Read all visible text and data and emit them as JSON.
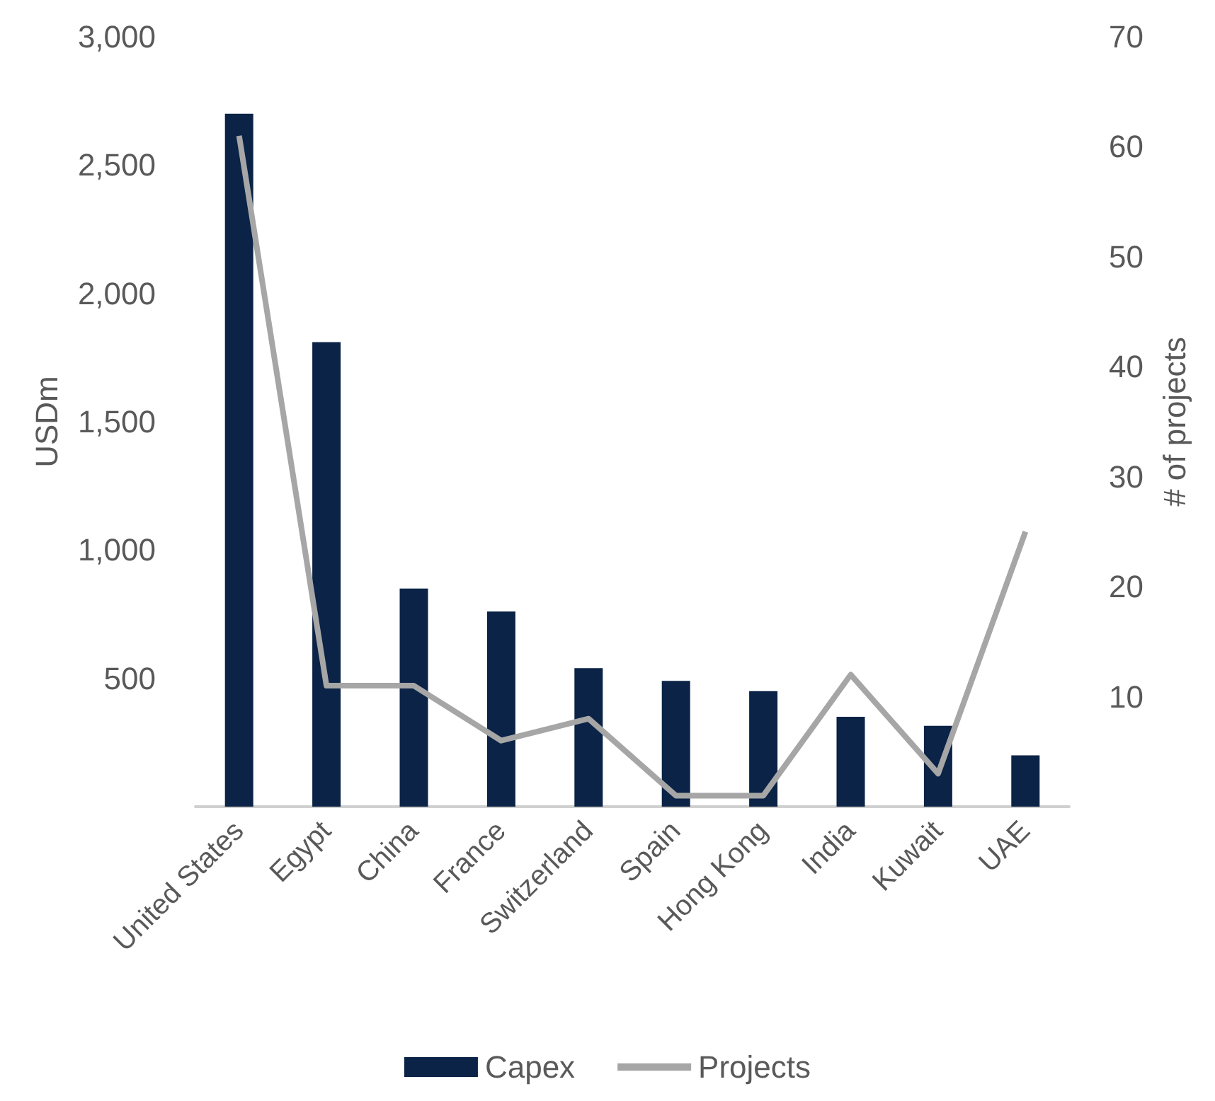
{
  "chart_data": {
    "type": "bar",
    "ylabel": "USDm",
    "y2label": "# of projects",
    "categories": [
      "United States",
      "Egypt",
      "China",
      "France",
      "Switzerland",
      "Spain",
      "Hong Kong",
      "India",
      "Kuwait",
      "UAE"
    ],
    "series": [
      {
        "name": "Capex",
        "color": "#0a2346",
        "values": [
          2700,
          1810,
          850,
          760,
          540,
          490,
          450,
          350,
          315,
          200
        ]
      },
      {
        "name": "Projects",
        "type": "line",
        "axis": "y2",
        "color": "#a6a6a6",
        "marker": "none",
        "values": [
          61,
          11,
          11,
          6,
          8,
          1,
          1,
          12,
          3,
          25
        ]
      }
    ],
    "ylim": [
      0,
      3000
    ],
    "yticks": [
      500,
      {
        "value": 1000,
        "label": "1,000"
      },
      {
        "value": 1500,
        "label": "1,500"
      },
      {
        "value": 2000,
        "label": "2,000"
      },
      {
        "value": 2500,
        "label": "2,500"
      },
      {
        "value": 3000,
        "label": "3,000"
      }
    ],
    "y2lim": [
      0,
      70
    ],
    "y2ticks": [
      10,
      20,
      30,
      40,
      50,
      60,
      70
    ],
    "grid": false,
    "legend": "bottom"
  }
}
